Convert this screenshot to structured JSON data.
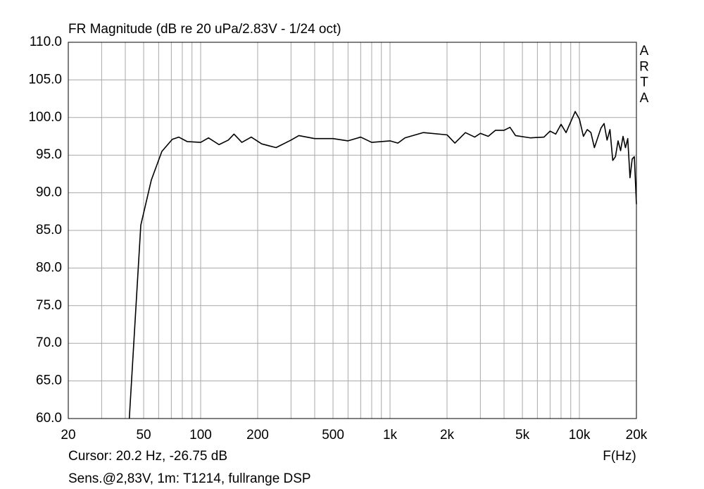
{
  "chart_data": {
    "type": "line",
    "title": "FR Magnitude (dB re 20 uPa/2.83V - 1/24 oct)",
    "x_label": "F(Hz)",
    "side_label": "ARTA",
    "annotations": [
      "Cursor: 20.2 Hz, -26.75 dB",
      "Sens.@2,83V, 1m: T1214, fullrange DSP"
    ],
    "xscale": "log",
    "xlim": [
      20,
      20000
    ],
    "ylim": [
      60,
      110
    ],
    "xticks": [
      20,
      50,
      100,
      200,
      500,
      {
        "value": 1000,
        "label": "1k"
      },
      {
        "value": 2000,
        "label": "2k"
      },
      {
        "value": 5000,
        "label": "5k"
      },
      {
        "value": 10000,
        "label": "10k"
      },
      {
        "value": 20000,
        "label": "20k"
      }
    ],
    "x_minor_grid": [
      30,
      40,
      60,
      70,
      80,
      90,
      300,
      400,
      600,
      700,
      800,
      900,
      3000,
      4000,
      6000,
      7000,
      8000,
      9000
    ],
    "yticks": [
      {
        "value": 60,
        "label": "60.0"
      },
      {
        "value": 65,
        "label": "65.0"
      },
      {
        "value": 70,
        "label": "70.0"
      },
      {
        "value": 75,
        "label": "75.0"
      },
      {
        "value": 80,
        "label": "80.0"
      },
      {
        "value": 85,
        "label": "85.0"
      },
      {
        "value": 90,
        "label": "90.0"
      },
      {
        "value": 95,
        "label": "95.0"
      },
      {
        "value": 100,
        "label": "100.0"
      },
      {
        "value": 105,
        "label": "105.0"
      },
      {
        "value": 110,
        "label": "110.0"
      }
    ],
    "grid": true,
    "series": [
      {
        "color": "#000000",
        "x": [
          42,
          48.3,
          54.9,
          62.4,
          70.8,
          76.6,
          85,
          100,
          110,
          125,
          140,
          150,
          165,
          185,
          210,
          250,
          300,
          330,
          400,
          500,
          600,
          700,
          800,
          1000,
          1100,
          1200,
          1500,
          2000,
          2200,
          2500,
          2800,
          3000,
          3300,
          3600,
          4000,
          4300,
          4600,
          5500,
          6500,
          7000,
          7500,
          8000,
          8500,
          9500,
          10000,
          10500,
          11000,
          11500,
          12000,
          13000,
          13500,
          14000,
          14500,
          15000,
          15500,
          16000,
          16500,
          17000,
          17500,
          18000,
          18500,
          19000,
          19500,
          20000
        ],
        "values": [
          60,
          85.7,
          91.7,
          95.5,
          97.1,
          97.4,
          96.8,
          96.7,
          97.3,
          96.4,
          97.0,
          97.8,
          96.7,
          97.4,
          96.5,
          96.0,
          97.0,
          97.6,
          97.2,
          97.2,
          96.9,
          97.4,
          96.7,
          96.9,
          96.6,
          97.3,
          98.0,
          97.7,
          96.6,
          98.0,
          97.4,
          97.9,
          97.5,
          98.3,
          98.3,
          98.7,
          97.6,
          97.3,
          97.4,
          98.2,
          97.8,
          99.1,
          98.0,
          100.8,
          99.8,
          97.5,
          98.4,
          98.0,
          96.0,
          98.6,
          99.2,
          97.0,
          98.4,
          94.3,
          94.8,
          96.9,
          95.6,
          97.5,
          96.0,
          97.2,
          92.0,
          94.5,
          94.8,
          88.5
        ]
      }
    ]
  }
}
